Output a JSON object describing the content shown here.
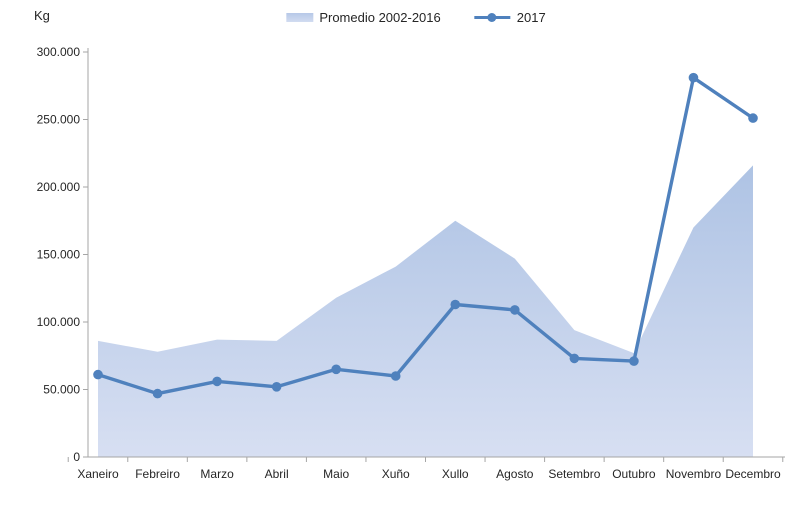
{
  "colors": {
    "line": "#4f81bd",
    "area_top": "#aec3e4",
    "area_bottom": "#d7dff2",
    "axis": "#a6a6a6",
    "text": "#262626"
  },
  "chart_data": {
    "type": "area",
    "subtype": "area + line combo",
    "title": "",
    "xlabel": "",
    "ylabel": "Kg",
    "categories": [
      "Xaneiro",
      "Febreiro",
      "Marzo",
      "Abril",
      "Maio",
      "Xuño",
      "Xullo",
      "Agosto",
      "Setembro",
      "Outubro",
      "Novembro",
      "Decembro"
    ],
    "series": [
      {
        "name": "Promedio 2002-2016",
        "type": "area",
        "values": [
          86000,
          78000,
          87000,
          86000,
          118000,
          141000,
          175000,
          147000,
          94000,
          77000,
          170000,
          216000
        ]
      },
      {
        "name": "2017",
        "type": "line",
        "values": [
          61000,
          47000,
          56000,
          52000,
          65000,
          60000,
          113000,
          109000,
          73000,
          71000,
          281000,
          251000
        ]
      }
    ],
    "ylim": [
      0,
      300000
    ],
    "y_tick_step": 50000,
    "y_tick_labels": [
      "0",
      "50.000",
      "100.000",
      "150.000",
      "200.000",
      "250.000",
      "300.000"
    ],
    "grid": false,
    "legend_position": "top-center"
  }
}
